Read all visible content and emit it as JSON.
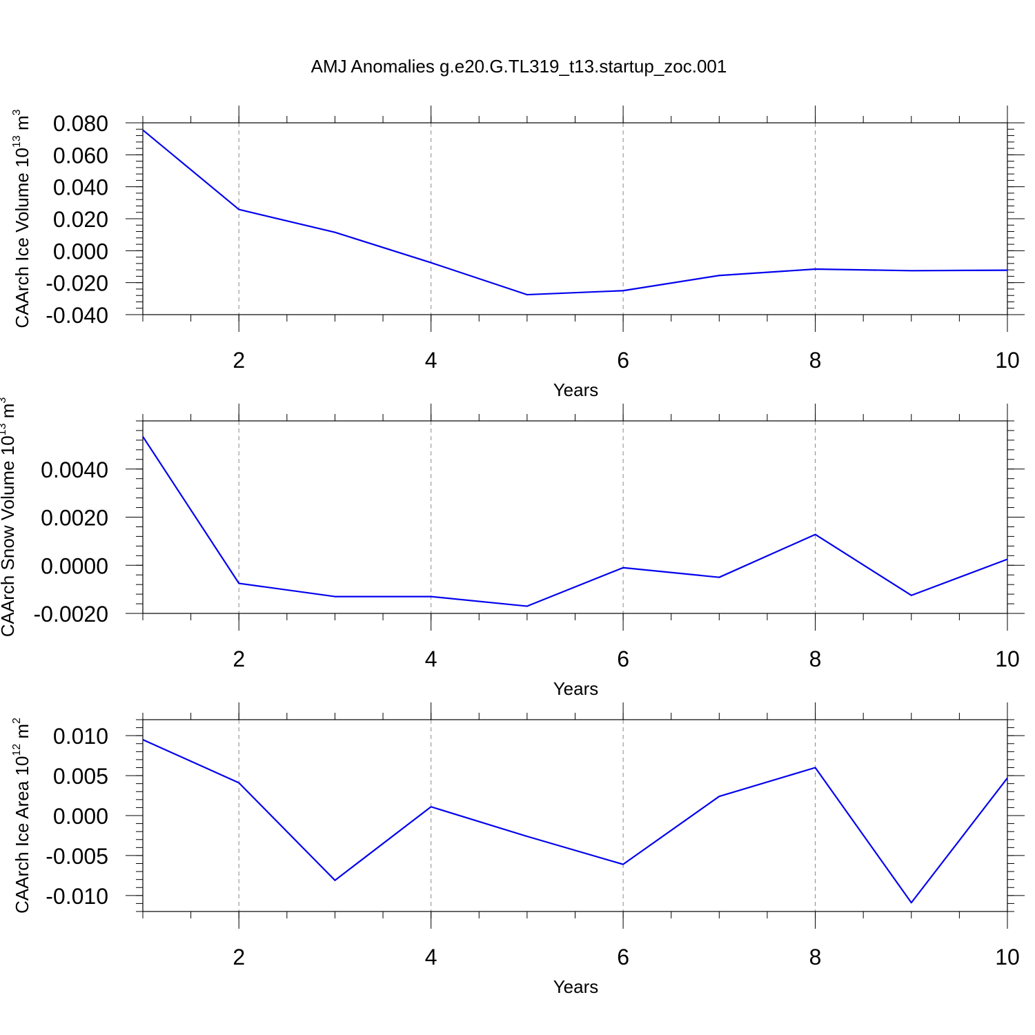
{
  "figure": {
    "title": "AMJ Anomalies g.e20.G.TL319_t13.startup_zoc.001"
  },
  "colors": {
    "series": "#0000ee",
    "frame": "#000000",
    "grid": "#888888"
  },
  "chart_data": [
    {
      "type": "line",
      "title": "",
      "xlabel": "Years",
      "ylabel": "CAArch Ice Volume 10",
      "ylabel_exponent": "13",
      "ylabel_unit_base": " m",
      "ylabel_unit_exponent": "3",
      "xlim": [
        1,
        10
      ],
      "ylim": [
        -0.04,
        0.08
      ],
      "xticks": [
        2,
        4,
        6,
        8,
        10
      ],
      "xticklabels": [
        "2",
        "4",
        "6",
        "8",
        "10"
      ],
      "xminor_step": 0.5,
      "yticks": [
        -0.04,
        -0.02,
        0.0,
        0.02,
        0.04,
        0.06,
        0.08
      ],
      "yticklabels": [
        "-0.040",
        "-0.020",
        "0.000",
        "0.020",
        "0.040",
        "0.060",
        "0.080"
      ],
      "yminor_step": 0.004,
      "grid": "vertical dashed at major x ticks",
      "x": [
        1,
        2,
        3,
        4,
        5,
        6,
        7,
        8,
        9,
        10
      ],
      "series": [
        {
          "values": [
            0.0755,
            0.0258,
            0.0115,
            -0.0075,
            -0.0275,
            -0.025,
            -0.0155,
            -0.0115,
            -0.0125,
            -0.0122
          ]
        }
      ]
    },
    {
      "type": "line",
      "title": "",
      "xlabel": "Years",
      "ylabel": "CAArch Snow Volume 10",
      "ylabel_exponent": "13",
      "ylabel_unit_base": " m",
      "ylabel_unit_exponent": "3",
      "xlim": [
        1,
        10
      ],
      "ylim": [
        -0.002,
        0.006
      ],
      "xticks": [
        2,
        4,
        6,
        8,
        10
      ],
      "xticklabels": [
        "2",
        "4",
        "6",
        "8",
        "10"
      ],
      "xminor_step": 0.5,
      "yticks": [
        -0.002,
        0.0,
        0.002,
        0.004
      ],
      "yticklabels": [
        "-0.0020",
        "0.0000",
        "0.0020",
        "0.0040"
      ],
      "yminor_step": 0.0004,
      "grid": "vertical dashed at major x ticks",
      "x": [
        1,
        2,
        3,
        4,
        5,
        6,
        7,
        8,
        9,
        10
      ],
      "series": [
        {
          "values": [
            0.00535,
            -0.00075,
            -0.0013,
            -0.0013,
            -0.0017,
            -0.0001,
            -0.0005,
            0.00128,
            -0.00125,
            0.00025
          ]
        }
      ]
    },
    {
      "type": "line",
      "title": "",
      "xlabel": "Years",
      "ylabel": "CAArch Ice Area 10",
      "ylabel_exponent": "12",
      "ylabel_unit_base": " m",
      "ylabel_unit_exponent": "2",
      "xlim": [
        1,
        10
      ],
      "ylim": [
        -0.012,
        0.012
      ],
      "xticks": [
        2,
        4,
        6,
        8,
        10
      ],
      "xticklabels": [
        "2",
        "4",
        "6",
        "8",
        "10"
      ],
      "xminor_step": 0.5,
      "yticks": [
        -0.01,
        -0.005,
        0.0,
        0.005,
        0.01
      ],
      "yticklabels": [
        "-0.010",
        "-0.005",
        "0.000",
        "0.005",
        "0.010"
      ],
      "yminor_step": 0.001,
      "grid": "vertical dashed at major x ticks",
      "x": [
        1,
        2,
        3,
        4,
        5,
        6,
        7,
        8,
        9,
        10
      ],
      "series": [
        {
          "values": [
            0.0095,
            0.0041,
            -0.0081,
            0.0011,
            -0.0026,
            -0.0061,
            0.0024,
            0.006,
            -0.0109,
            0.0047
          ]
        }
      ]
    }
  ]
}
